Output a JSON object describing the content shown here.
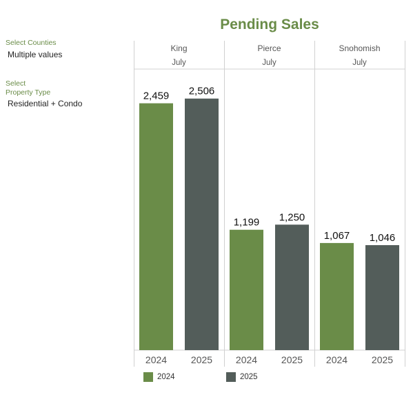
{
  "header": {
    "title": "Pending Sales"
  },
  "filters": {
    "counties": {
      "label": "Select Counties",
      "value": "Multiple values"
    },
    "property_type": {
      "label_line1": "Select",
      "label_line2": "Property Type",
      "value": "Residential + Condo"
    }
  },
  "colors": {
    "2024": "#6a8c48",
    "2025": "#535d5a"
  },
  "legend": [
    {
      "name": "2024"
    },
    {
      "name": "2025"
    }
  ],
  "chart_data": {
    "type": "bar",
    "title": "Pending Sales",
    "panels": [
      {
        "county": "King",
        "month": "July",
        "categories": [
          "2024",
          "2025"
        ],
        "values": [
          2459,
          2506
        ],
        "labels": [
          "2,459",
          "2,506"
        ]
      },
      {
        "county": "Pierce",
        "month": "July",
        "categories": [
          "2024",
          "2025"
        ],
        "values": [
          1199,
          1250
        ],
        "labels": [
          "1,199",
          "1,250"
        ]
      },
      {
        "county": "Snohomish",
        "month": "July",
        "categories": [
          "2024",
          "2025"
        ],
        "values": [
          1067,
          1046
        ],
        "labels": [
          "1,067",
          "1,046"
        ]
      }
    ],
    "series": [
      {
        "name": "2024"
      },
      {
        "name": "2025"
      }
    ],
    "xlabel": "",
    "ylabel": "",
    "ylim": [
      0,
      2800
    ],
    "grid": false,
    "legend_position": "bottom"
  }
}
